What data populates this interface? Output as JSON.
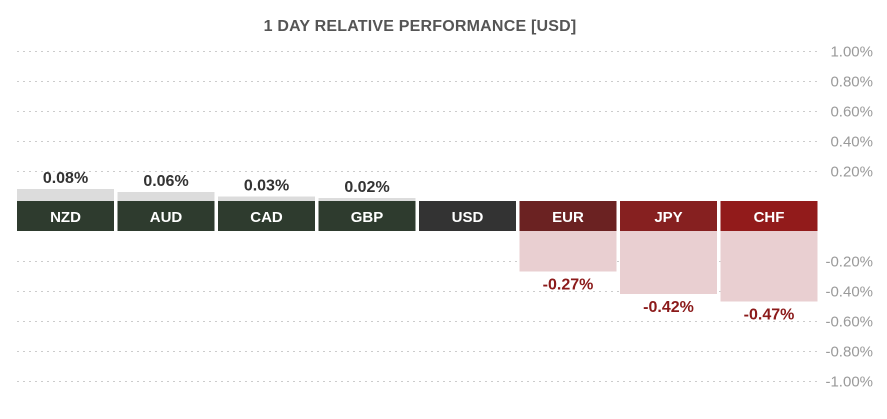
{
  "chart_data": {
    "type": "bar",
    "title": "1 DAY RELATIVE PERFORMANCE  [USD]",
    "xlabel": "",
    "ylabel": "",
    "ylim": [
      -1.0,
      1.0
    ],
    "y_ticks": [
      1.0,
      0.8,
      0.6,
      0.4,
      0.2,
      -0.2,
      -0.4,
      -0.6,
      -0.8,
      -1.0
    ],
    "y_tick_labels": [
      "1.00%",
      "0.80%",
      "0.60%",
      "0.40%",
      "0.20%",
      "-0.20%",
      "-0.40%",
      "-0.60%",
      "-0.80%",
      "-1.00%"
    ],
    "grid": true,
    "categories": [
      "NZD",
      "AUD",
      "CAD",
      "GBP",
      "USD",
      "EUR",
      "JPY",
      "CHF"
    ],
    "values": [
      0.08,
      0.06,
      0.03,
      0.02,
      0,
      -0.27,
      -0.42,
      -0.47
    ],
    "value_labels": [
      "0.08%",
      "0.06%",
      "0.03%",
      "0.02%",
      "",
      "-0.27%",
      "-0.42%",
      "-0.47%"
    ],
    "colors": {
      "positive_label_bg": "#2e3b2e",
      "neutral_label_bg": "#333333",
      "negative_label_bg": [
        "#6b2222",
        "#862020",
        "#921b1b"
      ],
      "positive_bar": "#dcdcdc",
      "negative_bar": "#e9cfd1",
      "positive_text": "#333333",
      "negative_text": "#8b1a1a",
      "grid": "#cccccc",
      "tick_text": "#9a9a9a",
      "title_text": "#555555"
    }
  }
}
